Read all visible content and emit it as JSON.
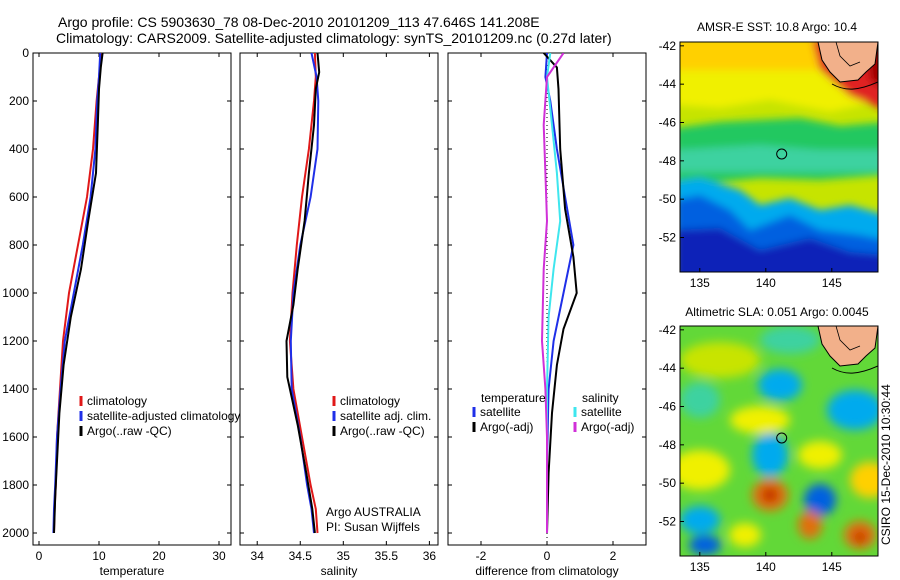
{
  "titles": {
    "line1": "Argo profile: CS 5903630_78 08-Dec-2010 20101209_113 47.646S 141.208E",
    "line2": "Climatology: CARS2009. Satellite-adjusted climatology: synTS_20101209.nc (0.27d later)"
  },
  "credit": "CSIRO 15-Dec-2010 10:30:44",
  "colors": {
    "climatology": "#e01818",
    "satellite": "#1f2fe8",
    "argo": "#000000",
    "sal_satellite": "#3ee6ee",
    "sal_argo": "#d030d8",
    "land": "#f2b08a"
  },
  "chart_data": [
    {
      "type": "line",
      "id": "temperature",
      "xlabel": "temperature",
      "xlim": [
        -1,
        32
      ],
      "ylim": [
        2050,
        0
      ],
      "xticks": [
        0,
        10,
        20,
        30
      ],
      "xtick_labels": [
        "0",
        "10",
        "20",
        "30"
      ],
      "yticks": [
        0,
        200,
        400,
        600,
        800,
        1000,
        1200,
        1400,
        1600,
        1800,
        2000
      ],
      "ytick_labels": [
        "0",
        "200",
        "400",
        "600",
        "800",
        "1000",
        "1200",
        "1400",
        "1600",
        "1800",
        "2000"
      ],
      "legend": [
        "climatology",
        "satellite-adjusted climatology",
        "Argo(..raw -QC)"
      ],
      "series": [
        {
          "name": "climatology",
          "color": "#e01818",
          "x": [
            10.4,
            10.0,
            9.6,
            9.0,
            8.0,
            6.5,
            5.0,
            4.0,
            3.5,
            3.0,
            2.8,
            2.6,
            2.5
          ],
          "y": [
            0,
            100,
            200,
            400,
            600,
            800,
            1000,
            1200,
            1400,
            1600,
            1800,
            1900,
            2000
          ]
        },
        {
          "name": "satellite-adjusted climatology",
          "color": "#1f2fe8",
          "x": [
            10.2,
            10.0,
            9.7,
            9.4,
            8.6,
            7.3,
            5.8,
            4.3,
            3.6,
            3.0,
            2.7,
            2.5,
            2.4
          ],
          "y": [
            0,
            100,
            200,
            400,
            600,
            800,
            1000,
            1200,
            1400,
            1600,
            1800,
            1900,
            2000
          ]
        },
        {
          "name": "Argo(..raw -QC)",
          "color": "#000000",
          "x": [
            10.6,
            10.3,
            10.0,
            9.8,
            9.5,
            8.2,
            7.0,
            5.3,
            4.1,
            3.4,
            3.0,
            2.7,
            2.5
          ],
          "y": [
            0,
            60,
            150,
            300,
            500,
            700,
            900,
            1100,
            1300,
            1500,
            1700,
            1850,
            2000
          ]
        }
      ]
    },
    {
      "type": "line",
      "id": "salinity",
      "xlabel": "salinity",
      "xlim": [
        33.8,
        36.1
      ],
      "ylim": [
        2050,
        0
      ],
      "xticks": [
        34,
        34.5,
        35,
        35.5,
        36
      ],
      "xtick_labels": [
        "34",
        "34.5",
        "35",
        "35.5",
        "36"
      ],
      "legend": [
        "climatology",
        "satellite adj. clim.",
        "Argo(..raw -QC)"
      ],
      "annotation": [
        "Argo AUSTRALIA",
        "PI: Susan Wijffels"
      ],
      "series": [
        {
          "name": "climatology",
          "color": "#e01818",
          "x": [
            34.67,
            34.68,
            34.66,
            34.6,
            34.52,
            34.46,
            34.41,
            34.38,
            34.42,
            34.52,
            34.62,
            34.68,
            34.7
          ],
          "y": [
            0,
            100,
            200,
            400,
            600,
            800,
            1000,
            1200,
            1400,
            1600,
            1800,
            1900,
            2000
          ]
        },
        {
          "name": "satellite adj. clim.",
          "color": "#1f2fe8",
          "x": [
            34.63,
            34.69,
            34.71,
            34.7,
            34.62,
            34.5,
            34.42,
            34.39,
            34.4,
            34.5,
            34.58,
            34.63,
            34.66
          ],
          "y": [
            0,
            100,
            200,
            400,
            600,
            800,
            1000,
            1200,
            1400,
            1600,
            1800,
            1900,
            2000
          ]
        },
        {
          "name": "Argo(..raw -QC)",
          "color": "#000000",
          "x": [
            34.7,
            34.72,
            34.68,
            34.66,
            34.6,
            34.55,
            34.47,
            34.42,
            34.34,
            34.35,
            34.47,
            34.57,
            34.64,
            34.67
          ],
          "y": [
            0,
            80,
            150,
            300,
            500,
            700,
            900,
            1050,
            1200,
            1350,
            1550,
            1750,
            1900,
            2000
          ]
        }
      ]
    },
    {
      "type": "line",
      "id": "difference",
      "xlabel": "difference from climatology",
      "xlim": [
        -3,
        3
      ],
      "ylim": [
        2050,
        0
      ],
      "xticks": [
        -2,
        0,
        2
      ],
      "xtick_labels": [
        "-2",
        "0",
        "2"
      ],
      "legend_headers": [
        "temperature",
        "salinity"
      ],
      "legend": [
        "satellite",
        "Argo(-adj)",
        "satellite",
        "Argo(-adj)"
      ],
      "series": [
        {
          "name": "temperature satellite",
          "color": "#1f2fe8",
          "x": [
            0.0,
            -0.05,
            0.1,
            0.3,
            0.55,
            0.8,
            0.5,
            0.2,
            0.05,
            0.0,
            0.0
          ],
          "y": [
            0,
            100,
            200,
            400,
            600,
            800,
            1000,
            1200,
            1400,
            1700,
            2000
          ]
        },
        {
          "name": "temperature Argo(-adj)",
          "color": "#000000",
          "x": [
            -0.1,
            0.3,
            0.35,
            0.4,
            0.55,
            0.8,
            0.9,
            0.5,
            0.3,
            0.15,
            0.05,
            0.0
          ],
          "y": [
            0,
            60,
            150,
            400,
            650,
            850,
            1000,
            1150,
            1300,
            1500,
            1750,
            2000
          ]
        },
        {
          "name": "salinity satellite",
          "color": "#3ee6ee",
          "x": [
            0.1,
            0.0,
            0.15,
            0.3,
            0.4,
            0.2,
            0.05,
            0.0,
            0.0,
            0.0
          ],
          "y": [
            0,
            100,
            300,
            500,
            700,
            900,
            1100,
            1400,
            1700,
            2000
          ]
        },
        {
          "name": "salinity Argo(-adj)",
          "color": "#d030d8",
          "x": [
            0.5,
            0.0,
            -0.1,
            -0.05,
            0.0,
            -0.1,
            -0.15,
            -0.05,
            0.0,
            0.0,
            0.0
          ],
          "y": [
            0,
            100,
            300,
            500,
            700,
            900,
            1200,
            1400,
            1600,
            1800,
            2000
          ]
        }
      ]
    },
    {
      "type": "heatmap",
      "id": "sst",
      "title": "AMSR-E SST: 10.8 Argo: 10.4",
      "xlim": [
        133.5,
        148.5
      ],
      "ylim": [
        -53.8,
        -41.8
      ],
      "xticks": [
        135,
        140,
        145
      ],
      "xtick_labels": [
        "135",
        "140",
        "145"
      ],
      "yticks": [
        -42,
        -44,
        -46,
        -48,
        -50,
        -52
      ],
      "ytick_labels": [
        "-42",
        "-44",
        "-46",
        "-48",
        "-50",
        "-52"
      ],
      "argo_position": {
        "lon": 141.208,
        "lat": -47.646
      }
    },
    {
      "type": "heatmap",
      "id": "sla",
      "title": "Altimetric SLA: 0.051 Argo: 0.0045",
      "xlim": [
        133.5,
        148.5
      ],
      "ylim": [
        -53.8,
        -41.8
      ],
      "xticks": [
        135,
        140,
        145
      ],
      "xtick_labels": [
        "135",
        "140",
        "145"
      ],
      "yticks": [
        -42,
        -44,
        -46,
        -48,
        -50,
        -52
      ],
      "ytick_labels": [
        "-42",
        "-44",
        "-46",
        "-48",
        "-50",
        "-52"
      ],
      "argo_position": {
        "lon": 141.208,
        "lat": -47.646
      }
    }
  ]
}
